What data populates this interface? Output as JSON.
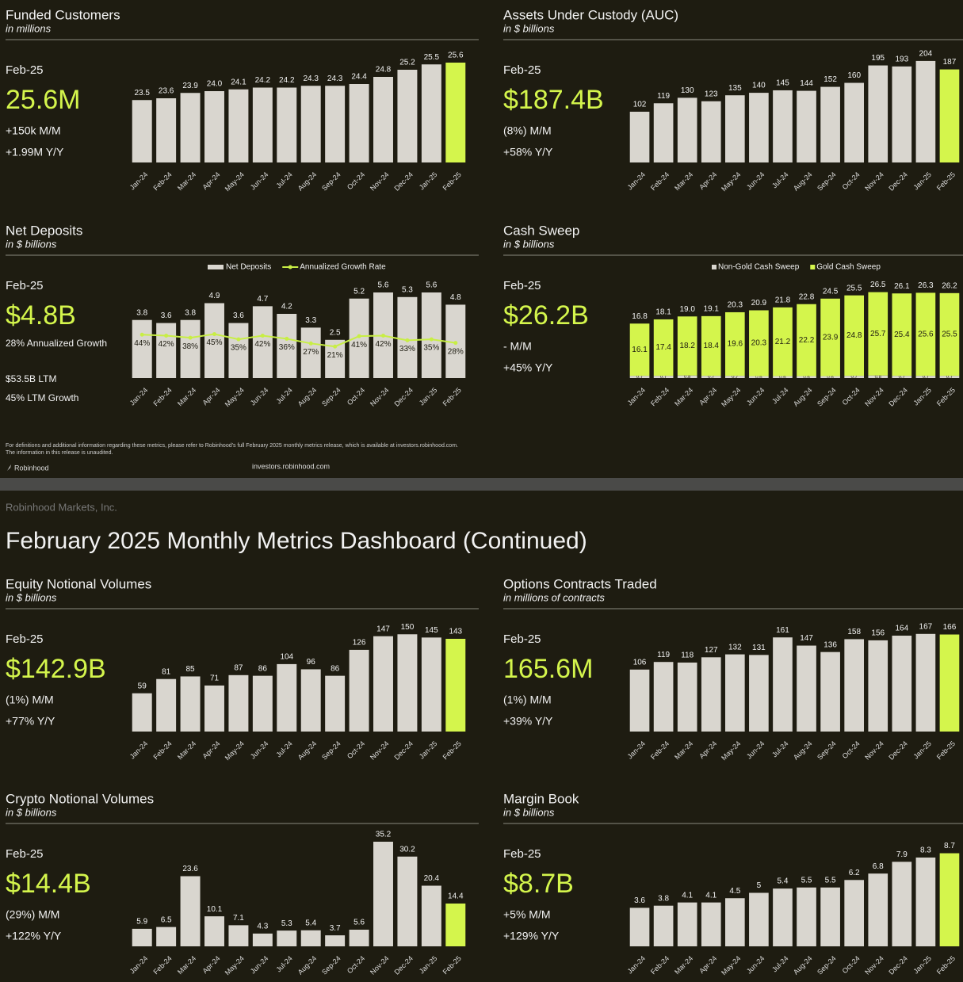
{
  "header": {
    "company": "Robinhood Markets, Inc.",
    "title": "February 2025 Monthly Metrics Dashboard (Continued)"
  },
  "footer": {
    "note": [
      "For definitions and additional information regarding these metrics, please refer to Robinhood's full February 2025 monthly metrics release, which is available at investors.robinhood.com.",
      "The information in this release is unaudited."
    ],
    "brand": "Robinhood",
    "url": "investors.robinhood.com"
  },
  "chart_data": [
    {
      "type": "bar",
      "title": "Funded Customers",
      "subtitle": "in millions",
      "period": "Feb-25",
      "headline": "25.6M",
      "notes": [
        "+150k M/M",
        "+1.99M Y/Y"
      ],
      "categories": [
        "Jan-24",
        "Feb-24",
        "Mar-24",
        "Apr-24",
        "May-24",
        "Jun-24",
        "Jul-24",
        "Aug-24",
        "Sep-24",
        "Oct-24",
        "Nov-24",
        "Dec-24",
        "Jan-25",
        "Feb-25"
      ],
      "series": [
        {
          "color": "#d9d6cf",
          "values": [
            23.5,
            23.6,
            23.9,
            24.0,
            24.1,
            24.2,
            24.2,
            24.3,
            24.3,
            24.4,
            24.8,
            25.2,
            25.5,
            25.6
          ],
          "value_labels": [
            "23.5",
            "23.6",
            "23.9",
            "24.0",
            "24.1",
            "24.2",
            "24.2",
            "24.3",
            "24.3",
            "24.4",
            "24.8",
            "25.2",
            "25.5",
            "25.6"
          ]
        }
      ],
      "highlight_color": "#d4f54c",
      "ylim": [
        20,
        26
      ]
    },
    {
      "type": "bar",
      "title": "Assets Under Custody (AUC)",
      "subtitle": "in $ billions",
      "period": "Feb-25",
      "headline": "$187.4B",
      "notes": [
        "(8%) M/M",
        "+58% Y/Y"
      ],
      "categories": [
        "Jan-24",
        "Feb-24",
        "Mar-24",
        "Apr-24",
        "May-24",
        "Jun-24",
        "Jul-24",
        "Aug-24",
        "Sep-24",
        "Oct-24",
        "Nov-24",
        "Dec-24",
        "Jan-25",
        "Feb-25"
      ],
      "series": [
        {
          "color": "#d9d6cf",
          "values": [
            102,
            119,
            130,
            123,
            135,
            140,
            145,
            144,
            152,
            160,
            195,
            193,
            204,
            187
          ]
        }
      ],
      "highlight_color": "#d4f54c",
      "ylim": [
        0,
        215
      ]
    },
    {
      "type": "bar_line",
      "title": "Net Deposits",
      "subtitle": "in $ billions",
      "period": "Feb-25",
      "headline": "$4.8B",
      "notes": [
        "28% Annualized Growth",
        "$53.5B LTM",
        "45% LTM Growth"
      ],
      "categories": [
        "Jan-24",
        "Feb-24",
        "Mar-24",
        "Apr-24",
        "May-24",
        "Jun-24",
        "Jul-24",
        "Aug-24",
        "Sep-24",
        "Oct-24",
        "Nov-24",
        "Dec-24",
        "Jan-25",
        "Feb-25"
      ],
      "series": [
        {
          "name": "Net Deposits",
          "color": "#d9d6cf",
          "values": [
            3.8,
            3.6,
            3.8,
            4.9,
            3.6,
            4.7,
            4.2,
            3.3,
            2.5,
            5.2,
            5.6,
            5.3,
            5.6,
            4.8
          ]
        },
        {
          "name": "Annualized Growth Rate",
          "color": "#c8ee45",
          "axis": "y2",
          "values": [
            44,
            42,
            38,
            45,
            35,
            42,
            36,
            27,
            21,
            41,
            42,
            33,
            35,
            28
          ],
          "value_labels": [
            "44%",
            "42%",
            "38%",
            "45%",
            "35%",
            "42%",
            "36%",
            "27%",
            "21%",
            "41%",
            "42%",
            "33%",
            "35%",
            "28%"
          ]
        }
      ],
      "ylim": [
        0,
        7
      ],
      "y2lim": [
        -40,
        167
      ]
    },
    {
      "type": "stacked_bar",
      "title": "Cash Sweep",
      "subtitle": "in $ billions",
      "period": "Feb-25",
      "headline": "$26.2B",
      "notes": [
        "- M/M",
        "+45% Y/Y"
      ],
      "categories": [
        "Jan-24",
        "Feb-24",
        "Mar-24",
        "Apr-24",
        "May-24",
        "Jun-24",
        "Jul-24",
        "Aug-24",
        "Sep-24",
        "Oct-24",
        "Nov-24",
        "Dec-24",
        "Jan-25",
        "Feb-25"
      ],
      "series": [
        {
          "name": "Non-Gold Cash Sweep",
          "color": "#d9d6cf",
          "values": [
            0.7,
            0.7,
            0.8,
            0.7,
            0.7,
            0.6,
            0.6,
            0.6,
            0.6,
            0.7,
            0.8,
            0.7,
            0.7,
            0.7
          ]
        },
        {
          "name": "Gold Cash Sweep",
          "color": "#d4f54c",
          "values": [
            16.1,
            17.4,
            18.2,
            18.4,
            19.6,
            20.3,
            21.2,
            22.2,
            23.9,
            24.8,
            25.7,
            25.4,
            25.6,
            25.5
          ]
        }
      ],
      "total_labels": [
        "16.8",
        "18.1",
        "19.0",
        "19.1",
        "20.3",
        "20.9",
        "21.8",
        "22.8",
        "24.5",
        "25.5",
        "26.5",
        "26.1",
        "26.3",
        "26.2"
      ],
      "ylim": [
        0,
        33
      ]
    },
    {
      "type": "bar",
      "title": "Equity Notional Volumes",
      "subtitle": "in $ billions",
      "period": "Feb-25",
      "headline": "$142.9B",
      "notes": [
        "(1%) M/M",
        "+77% Y/Y"
      ],
      "categories": [
        "Jan-24",
        "Feb-24",
        "Mar-24",
        "Apr-24",
        "May-24",
        "Jun-24",
        "Jul-24",
        "Aug-24",
        "Sep-24",
        "Oct-24",
        "Nov-24",
        "Dec-24",
        "Jan-25",
        "Feb-25"
      ],
      "series": [
        {
          "color": "#d9d6cf",
          "values": [
            59,
            81,
            85,
            71,
            87,
            86,
            104,
            96,
            86,
            126,
            147,
            150,
            145,
            143
          ]
        }
      ],
      "highlight_color": "#d4f54c",
      "ylim": [
        0,
        165
      ]
    },
    {
      "type": "bar",
      "title": "Options Contracts Traded",
      "subtitle": "in millions of contracts",
      "period": "Feb-25",
      "headline": "165.6M",
      "notes": [
        "(1%) M/M",
        "+39% Y/Y"
      ],
      "categories": [
        "Jan-24",
        "Feb-24",
        "Mar-24",
        "Apr-24",
        "May-24",
        "Jun-24",
        "Jul-24",
        "Aug-24",
        "Sep-24",
        "Oct-24",
        "Nov-24",
        "Dec-24",
        "Jan-25",
        "Feb-25"
      ],
      "series": [
        {
          "color": "#d9d6cf",
          "values": [
            106,
            119,
            118,
            127,
            132,
            131,
            161,
            147,
            136,
            158,
            156,
            164,
            167,
            166
          ]
        }
      ],
      "highlight_color": "#d4f54c",
      "ylim": [
        0,
        183
      ]
    },
    {
      "type": "bar",
      "title": "Crypto Notional Volumes",
      "subtitle": "in $ billions",
      "period": "Feb-25",
      "headline": "$14.4B",
      "notes": [
        "(29%) M/M",
        "+122% Y/Y"
      ],
      "categories": [
        "Jan-24",
        "Feb-24",
        "Mar-24",
        "Apr-24",
        "May-24",
        "Jun-24",
        "Jul-24",
        "Aug-24",
        "Sep-24",
        "Oct-24",
        "Nov-24",
        "Dec-24",
        "Jan-25",
        "Feb-25"
      ],
      "series": [
        {
          "color": "#d9d6cf",
          "values": [
            5.9,
            6.5,
            23.6,
            10.1,
            7.1,
            4.3,
            5.3,
            5.4,
            3.7,
            5.6,
            35.2,
            30.2,
            20.4,
            14.4
          ]
        }
      ],
      "highlight_color": "#d4f54c",
      "ylim": [
        0,
        36
      ]
    },
    {
      "type": "bar",
      "title": "Margin Book",
      "subtitle": "in $ billions",
      "period": "Feb-25",
      "headline": "$8.7B",
      "notes": [
        "+5% M/M",
        "+129% Y/Y"
      ],
      "categories": [
        "Jan-24",
        "Feb-24",
        "Mar-24",
        "Apr-24",
        "May-24",
        "Jun-24",
        "Jul-24",
        "Aug-24",
        "Sep-24",
        "Oct-24",
        "Nov-24",
        "Dec-24",
        "Jan-25",
        "Feb-25"
      ],
      "series": [
        {
          "color": "#d9d6cf",
          "values": [
            3.6,
            3.8,
            4.1,
            4.1,
            4.5,
            5.0,
            5.4,
            5.5,
            5.5,
            6.2,
            6.8,
            7.9,
            8.3,
            8.7
          ]
        }
      ],
      "highlight_color": "#d4f54c",
      "ylim": [
        0,
        10
      ]
    }
  ]
}
